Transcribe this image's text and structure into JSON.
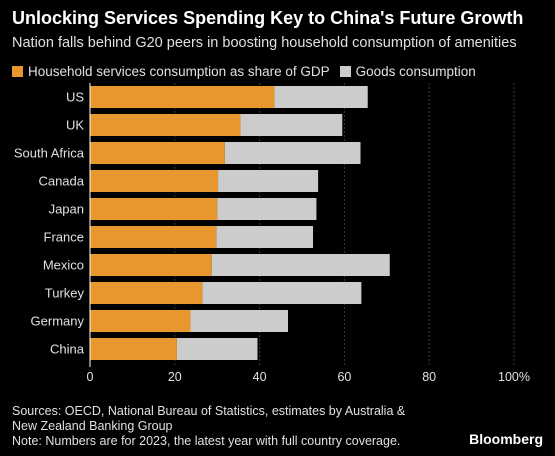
{
  "title": "Unlocking Services Spending Key to China's Future Growth",
  "subtitle": "Nation falls behind G20 peers in boosting household consumption of amenities",
  "legend": [
    {
      "label": "Household services consumption as share of GDP",
      "color": "#e8962e"
    },
    {
      "label": "Goods consumption",
      "color": "#cccccc"
    }
  ],
  "footer": {
    "sources": "Sources: OECD, National Bureau of Statistics, estimates by Australia & New Zealand Banking Group",
    "note": "Note: Numbers are for 2023, the latest year with full country coverage."
  },
  "brand": "Bloomberg",
  "chart_data": {
    "type": "bar",
    "orientation": "horizontal",
    "stacked": true,
    "categories": [
      "US",
      "UK",
      "South Africa",
      "Canada",
      "Japan",
      "France",
      "Mexico",
      "Turkey",
      "Germany",
      "China"
    ],
    "series": [
      {
        "name": "Household services consumption as share of GDP",
        "color": "#e8962e",
        "values": [
          43.5,
          35.5,
          31.8,
          30.2,
          30.0,
          29.8,
          28.7,
          26.5,
          23.7,
          20.5
        ]
      },
      {
        "name": "Goods consumption",
        "color": "#cccccc",
        "values": [
          22.0,
          24.0,
          32.0,
          23.6,
          23.4,
          22.8,
          42.0,
          37.5,
          23.0,
          19.0
        ]
      }
    ],
    "xlim": [
      0,
      100
    ],
    "xticks": [
      "0",
      "20",
      "40",
      "60",
      "80",
      "100%"
    ],
    "grid": true,
    "legend_position": "top-left"
  }
}
